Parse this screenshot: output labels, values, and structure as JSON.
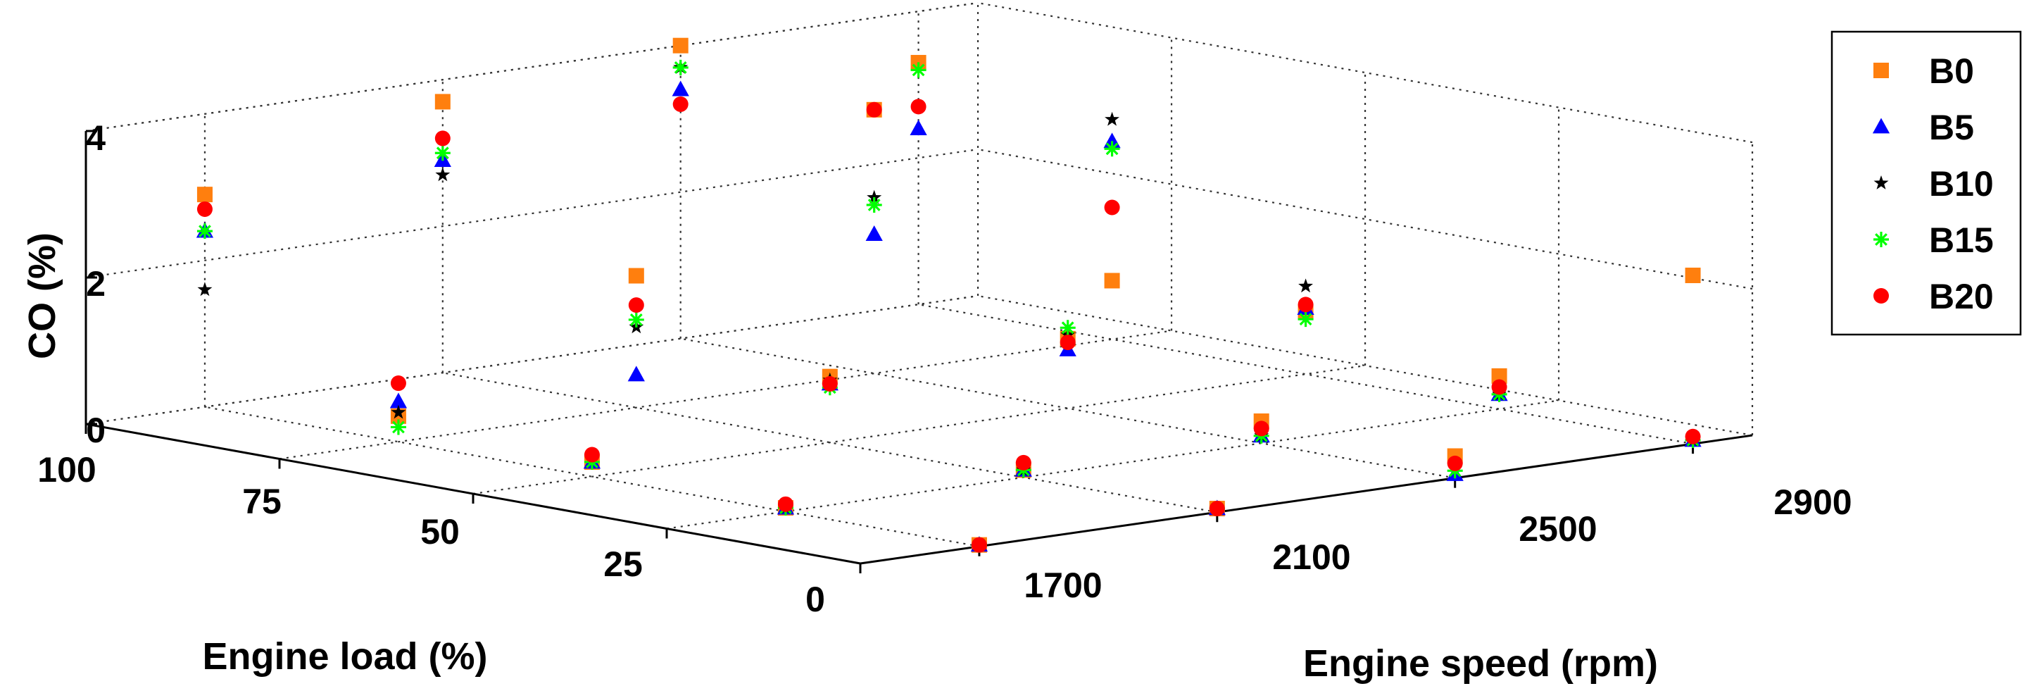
{
  "chart_data": {
    "type": "scatter3d",
    "title": "",
    "zlabel": "CO (%)",
    "xlabel": "Engine load (%)",
    "ylabel": "Engine speed (rpm)",
    "load_ticks": [
      "0",
      "25",
      "50",
      "75",
      "100"
    ],
    "speed_ticks": [
      "1700",
      "2100",
      "2500",
      "2900"
    ],
    "co_ticks": [
      "0",
      "2",
      "4"
    ],
    "load_range": [
      0,
      100
    ],
    "speed_range": [
      1500,
      3000
    ],
    "co_range": [
      0,
      4
    ],
    "grid": true,
    "legend_position": "top-right",
    "loads": [
      0,
      25,
      50,
      75,
      100
    ],
    "speeds": [
      1700,
      2100,
      2500,
      2900
    ],
    "series": [
      {
        "name": "B0",
        "color": "#ff7f0e",
        "marker": "square",
        "values": [
          [
            0.02,
            0.05,
            0.3,
            2.3
          ],
          [
            0.05,
            0.1,
            0.3,
            0.45
          ],
          [
            0.2,
            0.9,
            0.95,
            0.85
          ],
          [
            0.35,
            1.8,
            3.6,
            0.8
          ],
          [
            2.9,
            3.7,
            4.0,
            3.3
          ]
        ]
      },
      {
        "name": "B5",
        "color": "#0000ff",
        "marker": "triangle",
        "values": [
          [
            0.02,
            0.05,
            0.05,
            0.05
          ],
          [
            0.05,
            0.1,
            0.1,
            0.2
          ],
          [
            0.2,
            0.8,
            0.8,
            0.9
          ],
          [
            0.55,
            0.45,
            1.9,
            2.7
          ],
          [
            2.4,
            2.9,
            3.4,
            2.4
          ]
        ]
      },
      {
        "name": "B10",
        "color": "#000000",
        "marker": "star",
        "values": [
          [
            0.02,
            0.05,
            0.2,
            0.05
          ],
          [
            0.05,
            0.1,
            0.1,
            0.2
          ],
          [
            0.3,
            0.85,
            1.0,
            1.2
          ],
          [
            0.4,
            1.1,
            2.4,
            3.0
          ],
          [
            1.6,
            2.7,
            3.7,
            2.7
          ]
        ]
      },
      {
        "name": "B15",
        "color": "#00ff00",
        "marker": "plus",
        "values": [
          [
            0.02,
            0.05,
            0.1,
            0.05
          ],
          [
            0.05,
            0.1,
            0.1,
            0.2
          ],
          [
            0.2,
            0.75,
            1.1,
            0.75
          ],
          [
            0.2,
            1.2,
            2.3,
            2.6
          ],
          [
            2.4,
            3.0,
            3.7,
            3.2
          ]
        ]
      },
      {
        "name": "B20",
        "color": "#ff0000",
        "marker": "circle",
        "values": [
          [
            0.02,
            0.05,
            0.2,
            0.1
          ],
          [
            0.1,
            0.2,
            0.2,
            0.3
          ],
          [
            0.3,
            0.8,
            0.9,
            0.95
          ],
          [
            0.8,
            1.4,
            3.6,
            1.8
          ],
          [
            2.7,
            3.2,
            3.2,
            2.7
          ]
        ]
      }
    ]
  }
}
